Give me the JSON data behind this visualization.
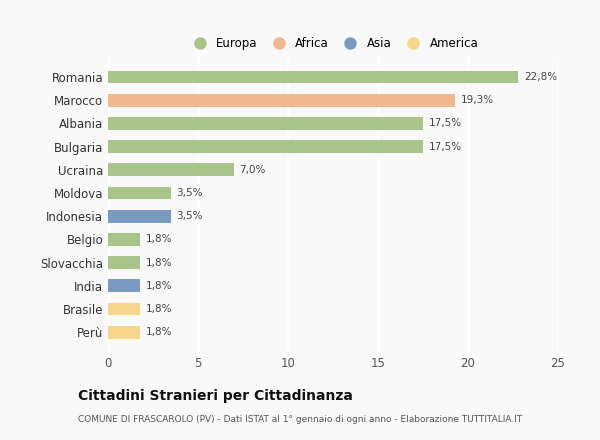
{
  "categories": [
    "Romania",
    "Marocco",
    "Albania",
    "Bulgaria",
    "Ucraina",
    "Moldova",
    "Indonesia",
    "Belgio",
    "Slovacchia",
    "India",
    "Brasile",
    "Perù"
  ],
  "values": [
    22.8,
    19.3,
    17.5,
    17.5,
    7.0,
    3.5,
    3.5,
    1.8,
    1.8,
    1.8,
    1.8,
    1.8
  ],
  "labels": [
    "22,8%",
    "19,3%",
    "17,5%",
    "17,5%",
    "7,0%",
    "3,5%",
    "3,5%",
    "1,8%",
    "1,8%",
    "1,8%",
    "1,8%",
    "1,8%"
  ],
  "colors": [
    "#a8c48a",
    "#f0b990",
    "#a8c48a",
    "#a8c48a",
    "#a8c48a",
    "#a8c48a",
    "#7a9abf",
    "#a8c48a",
    "#a8c48a",
    "#7a9abf",
    "#f5d68a",
    "#f5d68a"
  ],
  "legend_labels": [
    "Europa",
    "Africa",
    "Asia",
    "America"
  ],
  "legend_colors": [
    "#a8c48a",
    "#f0b990",
    "#7a9abf",
    "#f5d68a"
  ],
  "xlim": [
    0,
    25
  ],
  "xticks": [
    0,
    5,
    10,
    15,
    20,
    25
  ],
  "title": "Cittadini Stranieri per Cittadinanza",
  "subtitle": "COMUNE DI FRASCAROLO (PV) - Dati ISTAT al 1° gennaio di ogni anno - Elaborazione TUTTITALIA.IT",
  "bg_color": "#f9f9f9",
  "grid_color": "#ffffff",
  "bar_height": 0.55
}
